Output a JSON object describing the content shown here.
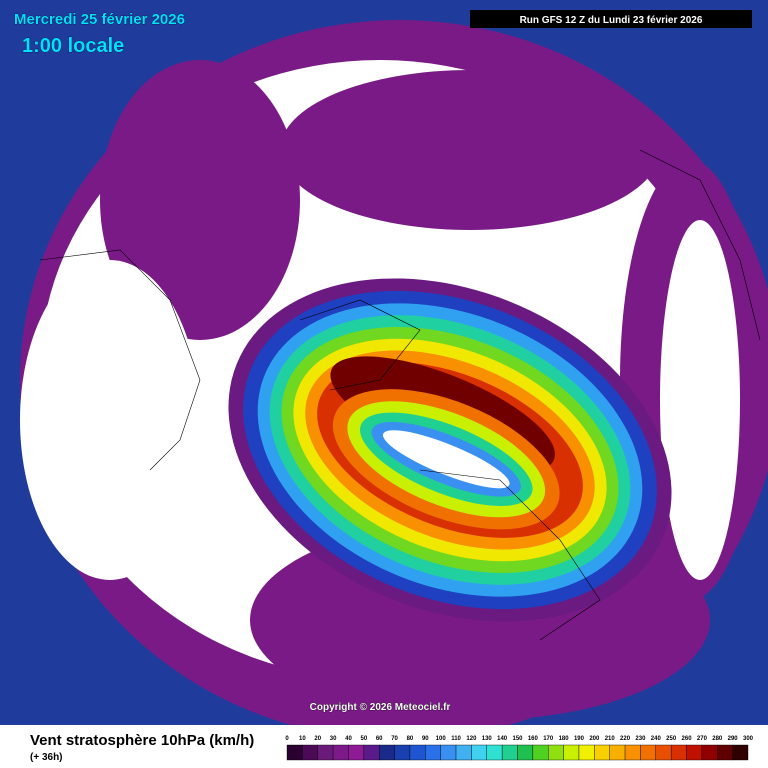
{
  "header": {
    "date": "Mercredi 25 février 2026",
    "time": "1:00 locale",
    "run": "Run GFS 12 Z du Lundi 23 février 2026"
  },
  "copyright": "Copyright © 2026 Meteociel.fr",
  "legend": {
    "title": "Vent stratosphère 10hPa (km/h)",
    "lead": "(+ 36h)",
    "labels": [
      0,
      10,
      20,
      30,
      40,
      50,
      60,
      70,
      80,
      90,
      100,
      110,
      120,
      130,
      140,
      150,
      160,
      170,
      180,
      190,
      200,
      210,
      220,
      230,
      240,
      250,
      260,
      270,
      280,
      290,
      300
    ],
    "colors": [
      "#2a0030",
      "#4a0a55",
      "#6a1a78",
      "#7d1a8a",
      "#8e1a96",
      "#5a1a8a",
      "#1a2a8a",
      "#1a3fb0",
      "#1f55d0",
      "#2a70e8",
      "#3a90f0",
      "#40b0f0",
      "#40d0f0",
      "#30e0d0",
      "#20d090",
      "#20c050",
      "#50d020",
      "#90e010",
      "#c8f000",
      "#f0f000",
      "#f8d000",
      "#f8b000",
      "#f89000",
      "#f07000",
      "#e85000",
      "#d83000",
      "#c01000",
      "#900000",
      "#600000",
      "#300000"
    ]
  }
}
